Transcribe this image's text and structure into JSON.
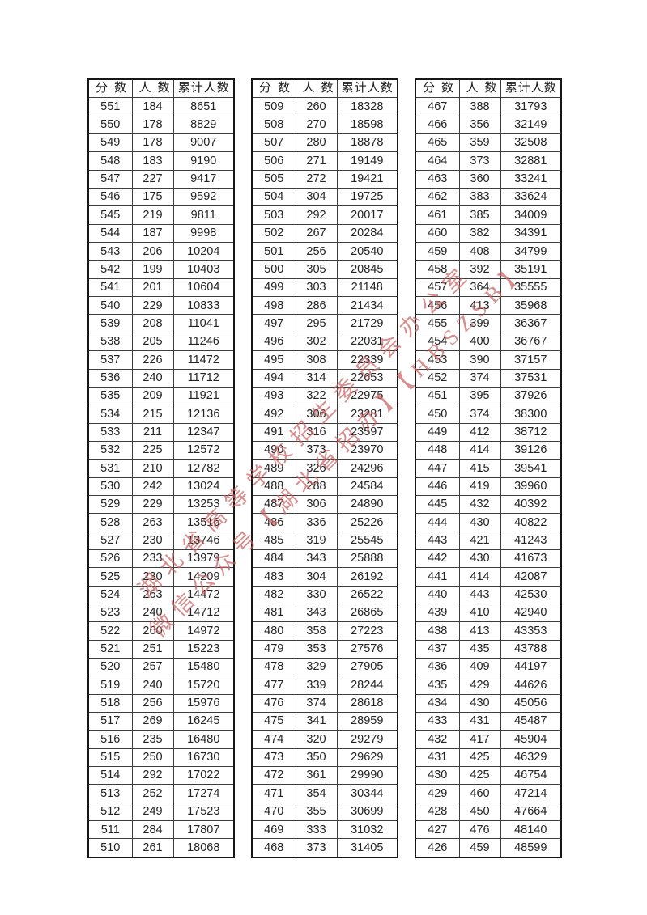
{
  "columns": [
    "分数",
    "人数",
    "累计人数"
  ],
  "column_meanings": [
    "score",
    "count",
    "cumulative-count"
  ],
  "watermark": {
    "line1": "湖北省高等学校招生委员会办公室",
    "line2": "微信公众号【湖北省招办】【HBSZSB】",
    "color": "#c96262"
  },
  "tables": [
    {
      "rows": [
        [
          551,
          184,
          8651
        ],
        [
          550,
          178,
          8829
        ],
        [
          549,
          178,
          9007
        ],
        [
          548,
          183,
          9190
        ],
        [
          547,
          227,
          9417
        ],
        [
          546,
          175,
          9592
        ],
        [
          545,
          219,
          9811
        ],
        [
          544,
          187,
          9998
        ],
        [
          543,
          206,
          10204
        ],
        [
          542,
          199,
          10403
        ],
        [
          541,
          201,
          10604
        ],
        [
          540,
          229,
          10833
        ],
        [
          539,
          208,
          11041
        ],
        [
          538,
          205,
          11246
        ],
        [
          537,
          226,
          11472
        ],
        [
          536,
          240,
          11712
        ],
        [
          535,
          209,
          11921
        ],
        [
          534,
          215,
          12136
        ],
        [
          533,
          211,
          12347
        ],
        [
          532,
          225,
          12572
        ],
        [
          531,
          210,
          12782
        ],
        [
          530,
          242,
          13024
        ],
        [
          529,
          229,
          13253
        ],
        [
          528,
          263,
          13516
        ],
        [
          527,
          230,
          13746
        ],
        [
          526,
          233,
          13979
        ],
        [
          525,
          230,
          14209
        ],
        [
          524,
          263,
          14472
        ],
        [
          523,
          240,
          14712
        ],
        [
          522,
          260,
          14972
        ],
        [
          521,
          251,
          15223
        ],
        [
          520,
          257,
          15480
        ],
        [
          519,
          240,
          15720
        ],
        [
          518,
          256,
          15976
        ],
        [
          517,
          269,
          16245
        ],
        [
          516,
          235,
          16480
        ],
        [
          515,
          250,
          16730
        ],
        [
          514,
          292,
          17022
        ],
        [
          513,
          252,
          17274
        ],
        [
          512,
          249,
          17523
        ],
        [
          511,
          284,
          17807
        ],
        [
          510,
          261,
          18068
        ]
      ]
    },
    {
      "rows": [
        [
          509,
          260,
          18328
        ],
        [
          508,
          270,
          18598
        ],
        [
          507,
          280,
          18878
        ],
        [
          506,
          271,
          19149
        ],
        [
          505,
          272,
          19421
        ],
        [
          504,
          304,
          19725
        ],
        [
          503,
          292,
          20017
        ],
        [
          502,
          267,
          20284
        ],
        [
          501,
          256,
          20540
        ],
        [
          500,
          305,
          20845
        ],
        [
          499,
          303,
          21148
        ],
        [
          498,
          286,
          21434
        ],
        [
          497,
          295,
          21729
        ],
        [
          496,
          302,
          22031
        ],
        [
          495,
          308,
          22339
        ],
        [
          494,
          314,
          22653
        ],
        [
          493,
          322,
          22975
        ],
        [
          492,
          306,
          23281
        ],
        [
          491,
          316,
          23597
        ],
        [
          490,
          373,
          23970
        ],
        [
          489,
          326,
          24296
        ],
        [
          488,
          288,
          24584
        ],
        [
          487,
          306,
          24890
        ],
        [
          486,
          336,
          25226
        ],
        [
          485,
          319,
          25545
        ],
        [
          484,
          343,
          25888
        ],
        [
          483,
          304,
          26192
        ],
        [
          482,
          330,
          26522
        ],
        [
          481,
          343,
          26865
        ],
        [
          480,
          358,
          27223
        ],
        [
          479,
          353,
          27576
        ],
        [
          478,
          329,
          27905
        ],
        [
          477,
          339,
          28244
        ],
        [
          476,
          374,
          28618
        ],
        [
          475,
          341,
          28959
        ],
        [
          474,
          320,
          29279
        ],
        [
          473,
          350,
          29629
        ],
        [
          472,
          361,
          29990
        ],
        [
          471,
          354,
          30344
        ],
        [
          470,
          355,
          30699
        ],
        [
          469,
          333,
          31032
        ],
        [
          468,
          373,
          31405
        ]
      ]
    },
    {
      "rows": [
        [
          467,
          388,
          31793
        ],
        [
          466,
          356,
          32149
        ],
        [
          465,
          359,
          32508
        ],
        [
          464,
          373,
          32881
        ],
        [
          463,
          360,
          33241
        ],
        [
          462,
          383,
          33624
        ],
        [
          461,
          385,
          34009
        ],
        [
          460,
          382,
          34391
        ],
        [
          459,
          408,
          34799
        ],
        [
          458,
          392,
          35191
        ],
        [
          457,
          364,
          35555
        ],
        [
          456,
          413,
          35968
        ],
        [
          455,
          399,
          36367
        ],
        [
          454,
          400,
          36767
        ],
        [
          453,
          390,
          37157
        ],
        [
          452,
          374,
          37531
        ],
        [
          451,
          395,
          37926
        ],
        [
          450,
          374,
          38300
        ],
        [
          449,
          412,
          38712
        ],
        [
          448,
          414,
          39126
        ],
        [
          447,
          415,
          39541
        ],
        [
          446,
          419,
          39960
        ],
        [
          445,
          432,
          40392
        ],
        [
          444,
          430,
          40822
        ],
        [
          443,
          421,
          41243
        ],
        [
          442,
          430,
          41673
        ],
        [
          441,
          414,
          42087
        ],
        [
          440,
          443,
          42530
        ],
        [
          439,
          410,
          42940
        ],
        [
          438,
          413,
          43353
        ],
        [
          437,
          435,
          43788
        ],
        [
          436,
          409,
          44197
        ],
        [
          435,
          429,
          44626
        ],
        [
          434,
          430,
          45056
        ],
        [
          433,
          431,
          45487
        ],
        [
          432,
          417,
          45904
        ],
        [
          431,
          425,
          46329
        ],
        [
          430,
          425,
          46754
        ],
        [
          429,
          460,
          47214
        ],
        [
          428,
          450,
          47664
        ],
        [
          427,
          476,
          48140
        ],
        [
          426,
          459,
          48599
        ]
      ]
    }
  ]
}
